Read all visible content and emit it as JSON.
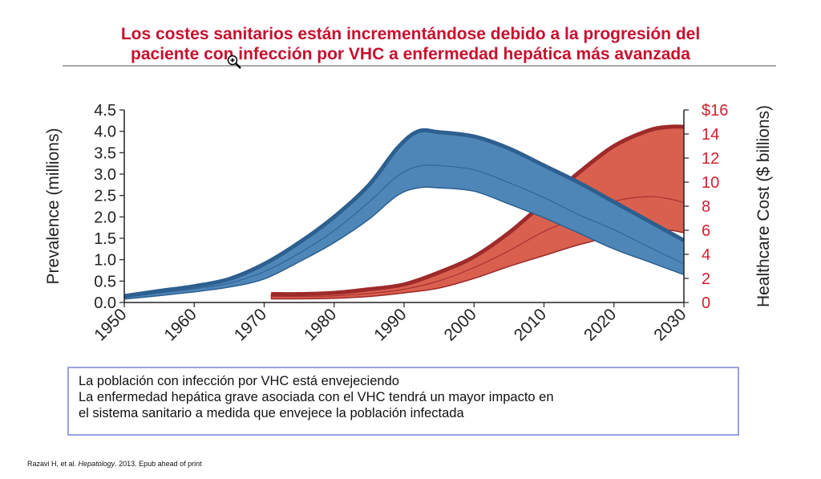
{
  "title": {
    "line1": "Los costes sanitarios están incrementándose debido a la progresión del",
    "line2": "paciente con infección por VHC a enfermedad hepática más avanzada"
  },
  "notes": [
    "La población con infección por VHC está envejeciendo",
    "La enfermedad hepática grave asociada con el VHC tendrá un mayor impacto en",
    "el sistema sanitario a medida que envejece la población infectada"
  ],
  "citation": {
    "authors": "Razavi H, et al.",
    "journal": "Hepatology",
    "rest": ". 2013. Epub ahead of print"
  },
  "icons": {
    "cursor": "zoom-in-icon"
  },
  "colors": {
    "title": "#c8102e",
    "prevalence_fill": "#4f86b8",
    "prevalence_edge": "#2d5f8f",
    "cost_fill": "#d9604f",
    "cost_edge": "#9e2a2a",
    "cost_axis": "#d0202f"
  },
  "chart_data": {
    "type": "area",
    "xlabel": "",
    "x_ticks": [
      "1950",
      "1960",
      "1970",
      "1980",
      "1990",
      "2000",
      "2010",
      "2020",
      "2030"
    ],
    "xlim": [
      1950,
      2030
    ],
    "y_left": {
      "label": "Prevalence (millions)",
      "lim": [
        0,
        4.5
      ],
      "ticks": [
        "0.0",
        "0.5",
        "1.0",
        "1.5",
        "2.0",
        "2.5",
        "3.0",
        "3.5",
        "4.0",
        "4.5"
      ]
    },
    "y_right": {
      "label": "Healthcare Cost ($ billions)",
      "lim": [
        0,
        16
      ],
      "ticks": [
        "0",
        "2",
        "4",
        "6",
        "8",
        "10",
        "12",
        "14",
        "$16"
      ]
    },
    "series": [
      {
        "name": "Prevalence (millions)",
        "axis": "left",
        "x": [
          1950,
          1955,
          1960,
          1965,
          1970,
          1975,
          1980,
          1985,
          1989,
          1992,
          1995,
          2000,
          2005,
          2010,
          2015,
          2020,
          2025,
          2030
        ],
        "upper": [
          0.15,
          0.27,
          0.38,
          0.55,
          0.9,
          1.4,
          2.0,
          2.75,
          3.6,
          4.0,
          3.98,
          3.88,
          3.6,
          3.2,
          2.8,
          2.35,
          1.9,
          1.45
        ],
        "mid": [
          0.12,
          0.22,
          0.32,
          0.45,
          0.72,
          1.15,
          1.68,
          2.35,
          2.95,
          3.18,
          3.2,
          3.1,
          2.8,
          2.45,
          2.05,
          1.7,
          1.3,
          0.9
        ],
        "lower": [
          0.08,
          0.16,
          0.25,
          0.36,
          0.55,
          0.95,
          1.4,
          1.95,
          2.5,
          2.68,
          2.68,
          2.6,
          2.3,
          1.98,
          1.62,
          1.25,
          0.95,
          0.65
        ]
      },
      {
        "name": "Healthcare Cost ($ billions)",
        "axis": "right",
        "x": [
          1971,
          1975,
          1980,
          1985,
          1990,
          1995,
          2000,
          2005,
          2010,
          2015,
          2020,
          2025,
          2028,
          2030
        ],
        "upper": [
          0.7,
          0.7,
          0.8,
          1.1,
          1.5,
          2.5,
          3.8,
          5.8,
          8.3,
          10.8,
          13.0,
          14.3,
          14.6,
          14.6
        ],
        "mid": [
          0.5,
          0.5,
          0.55,
          0.75,
          1.1,
          1.8,
          2.9,
          4.3,
          5.9,
          7.1,
          8.4,
          8.8,
          8.6,
          8.3
        ],
        "lower": [
          0.3,
          0.3,
          0.35,
          0.5,
          0.8,
          1.2,
          2.0,
          3.0,
          3.9,
          4.8,
          5.5,
          6.0,
          6.0,
          5.8
        ]
      }
    ],
    "legend": "none",
    "grid": false
  }
}
